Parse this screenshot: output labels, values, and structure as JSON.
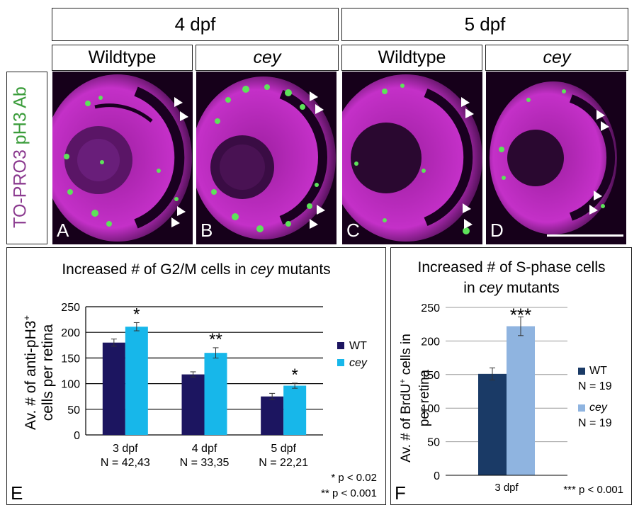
{
  "top_headers": [
    {
      "label": "4 dpf"
    },
    {
      "label": "5 dpf"
    }
  ],
  "sub_headers": [
    {
      "label": "Wildtype"
    },
    {
      "label": "cey"
    },
    {
      "label": "Wildtype"
    },
    {
      "label": "cey"
    }
  ],
  "stain_label": {
    "part1": "TO-PRO3",
    "part2": "pH3 Ab",
    "color1": "#8b3a8f",
    "color2": "#3a9c3a"
  },
  "panels": [
    {
      "letter": "A"
    },
    {
      "letter": "B"
    },
    {
      "letter": "C"
    },
    {
      "letter": "D"
    }
  ],
  "chart_data": [
    {
      "type": "bar",
      "panel_letter": "E",
      "title_part1": "Increased # of G2/M cells in ",
      "title_italic": "cey",
      "title_part2": " mutants",
      "ylabel_line1": "Av. # of anti-pH3",
      "ylabel_sup": "+",
      "ylabel_line2": "cells per retina",
      "ylim": [
        0,
        250
      ],
      "yticks": [
        "0",
        "50",
        "100",
        "150",
        "200",
        "250"
      ],
      "grid": true,
      "legend_position": "right",
      "categories": [
        "3 dpf",
        "4 dpf",
        "5 dpf"
      ],
      "category_n": [
        "N = 42,43",
        "N = 33,35",
        "N = 22,21"
      ],
      "series": [
        {
          "name": "WT",
          "color": "#1c1560",
          "values": [
            180,
            118,
            75
          ],
          "errors": [
            7,
            5,
            6
          ]
        },
        {
          "name": "cey",
          "italic": true,
          "color": "#17b7ea",
          "values": [
            211,
            160,
            96
          ],
          "errors": [
            8,
            10,
            5
          ]
        }
      ],
      "significance": [
        "*",
        "**",
        "*"
      ],
      "footnotes": [
        "* p < 0.02",
        "** p < 0.001"
      ]
    },
    {
      "type": "bar",
      "panel_letter": "F",
      "title_line1": "Increased # of S-phase cells",
      "title_line2_pre": "in ",
      "title_line2_italic": "cey",
      "title_line2_post": " mutants",
      "ylabel_line1_pre": "Av. # of BrdU",
      "ylabel_sup": "+",
      "ylabel_line1_post": " cells in",
      "ylabel_line2": "per retina",
      "ylim": [
        0,
        250
      ],
      "yticks": [
        "0",
        "50",
        "100",
        "150",
        "200",
        "250"
      ],
      "grid": true,
      "legend_position": "right",
      "categories": [
        "3 dpf"
      ],
      "series": [
        {
          "name": "WT",
          "n_label": "N = 19",
          "color": "#1a3a66",
          "values": [
            151
          ],
          "errors": [
            9
          ]
        },
        {
          "name": "cey",
          "italic": true,
          "n_label": "N = 19",
          "color": "#8fb4e0",
          "values": [
            222
          ],
          "errors": [
            14
          ]
        }
      ],
      "significance": [
        "***"
      ],
      "footnotes": [
        "*** p < 0.001"
      ]
    }
  ]
}
